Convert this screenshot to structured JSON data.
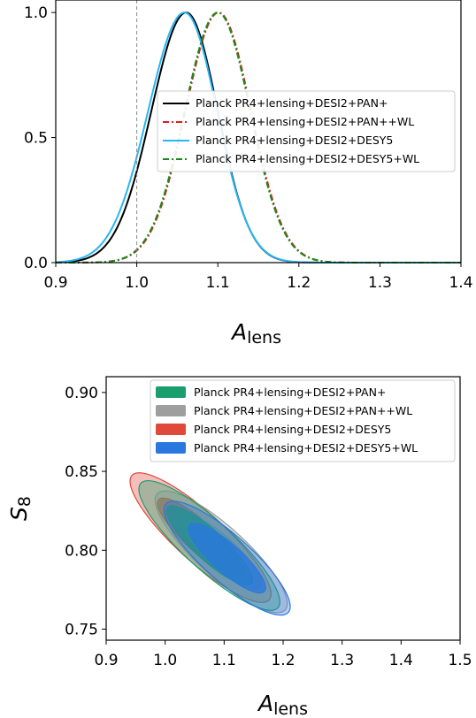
{
  "chart_data": [
    {
      "type": "line",
      "xlabel": "A",
      "xlabel_sub": "lens",
      "ylabel": "",
      "xlim": [
        0.9,
        1.4
      ],
      "ylim": [
        0.0,
        1.05
      ],
      "x_ticks": [
        "0.9",
        "1.0",
        "1.1",
        "1.2",
        "1.3",
        "1.4"
      ],
      "y_ticks": [
        "0.0",
        "0.5",
        "1.0"
      ],
      "reference_line_x": 1.0,
      "legend_placement": "center-right",
      "series": [
        {
          "name": "Planck PR4+lensing+DESI2+PAN+",
          "color": "#000000",
          "style": "solid",
          "peak": 1.061,
          "sigma_left": 0.043,
          "sigma_right": 0.039
        },
        {
          "name": "Planck PR4+lensing+DESI2+PAN++WL",
          "color": "#e31a1c",
          "style": "dashdot",
          "peak": 1.101,
          "sigma_left": 0.041,
          "sigma_right": 0.04
        },
        {
          "name": "Planck PR4+lensing+DESI2+DESY5",
          "color": "#29b6f6",
          "style": "solid",
          "peak": 1.059,
          "sigma_left": 0.045,
          "sigma_right": 0.04
        },
        {
          "name": "Planck PR4+lensing+DESI2+DESY5+WL",
          "color": "#1a8a1a",
          "style": "dashdot",
          "peak": 1.1,
          "sigma_left": 0.041,
          "sigma_right": 0.04
        }
      ]
    },
    {
      "type": "scatter",
      "xlabel": "A",
      "xlabel_sub": "lens",
      "ylabel": "S",
      "ylabel_sub": "8",
      "xlim": [
        0.9,
        1.5
      ],
      "ylim": [
        0.743,
        0.91
      ],
      "x_ticks": [
        "0.9",
        "1.0",
        "1.1",
        "1.2",
        "1.3",
        "1.4",
        "1.5"
      ],
      "y_ticks": [
        "0.75",
        "0.80",
        "0.85",
        "0.90"
      ],
      "legend_placement": "top-right",
      "series": [
        {
          "name": "Planck PR4+lensing+DESI2+PAN+",
          "color": "#1a9e6e",
          "center": [
            1.075,
            0.803
          ],
          "sigma_x": 0.048,
          "sigma_y": 0.0165,
          "corr": -0.87
        },
        {
          "name": "Planck PR4+lensing+DESI2+PAN++WL",
          "color": "#9e9e9e",
          "center": [
            1.095,
            0.799
          ],
          "sigma_x": 0.045,
          "sigma_y": 0.0155,
          "corr": -0.85
        },
        {
          "name": "Planck PR4+lensing+DESI2+DESY5",
          "color": "#e0483c",
          "center": [
            1.06,
            0.808
          ],
          "sigma_x": 0.048,
          "sigma_y": 0.0165,
          "corr": -0.87
        },
        {
          "name": "Planck PR4+lensing+DESI2+DESY5+WL",
          "color": "#2a77e0",
          "center": [
            1.105,
            0.795
          ],
          "sigma_x": 0.043,
          "sigma_y": 0.0145,
          "corr": -0.85
        }
      ]
    }
  ]
}
